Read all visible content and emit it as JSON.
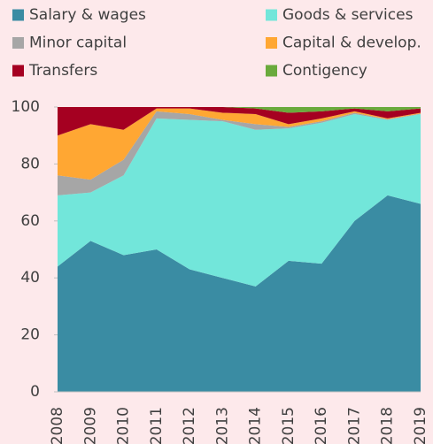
{
  "chart_data": {
    "type": "stacked_area",
    "categories": [
      "2008",
      "2009",
      "2010",
      "2011",
      "2012",
      "2013",
      "2014",
      "2015",
      "2016",
      "2017",
      "2018",
      "2019"
    ],
    "series": [
      {
        "name": "Salary & wages",
        "color": "#3a8ca3",
        "values": [
          44,
          53,
          48,
          50,
          43,
          40,
          37,
          46,
          45,
          60,
          69,
          66
        ]
      },
      {
        "name": "Goods & services",
        "color": "#72e6da",
        "values": [
          25,
          17,
          28,
          46,
          52.5,
          55,
          55,
          46.5,
          49.5,
          37.5,
          26.5,
          31.5
        ]
      },
      {
        "name": "Minor capital",
        "color": "#a6a6a6",
        "values": [
          7,
          4.5,
          5.5,
          2.5,
          2,
          0.5,
          2,
          0.5,
          0.5,
          0.5,
          0.2,
          0.2
        ]
      },
      {
        "name": "Capital & develop.",
        "color": "#ffa733",
        "values": [
          14,
          19.5,
          10.5,
          1,
          2,
          2.5,
          3.5,
          1,
          1,
          0.5,
          0.3,
          0.3
        ]
      },
      {
        "name": "Transfers",
        "color": "#a50021",
        "values": [
          10,
          6,
          8,
          0.5,
          0.5,
          2,
          2,
          4,
          2.5,
          1,
          2.5,
          1.5
        ]
      },
      {
        "name": "Contigency",
        "color": "#6aaa3c",
        "values": [
          0,
          0,
          0,
          0,
          0,
          0,
          0.5,
          2,
          1.5,
          0.5,
          1.5,
          0.5
        ]
      }
    ],
    "ylim": [
      0,
      100
    ],
    "yticks": [
      0,
      20,
      40,
      60,
      80,
      100
    ]
  }
}
